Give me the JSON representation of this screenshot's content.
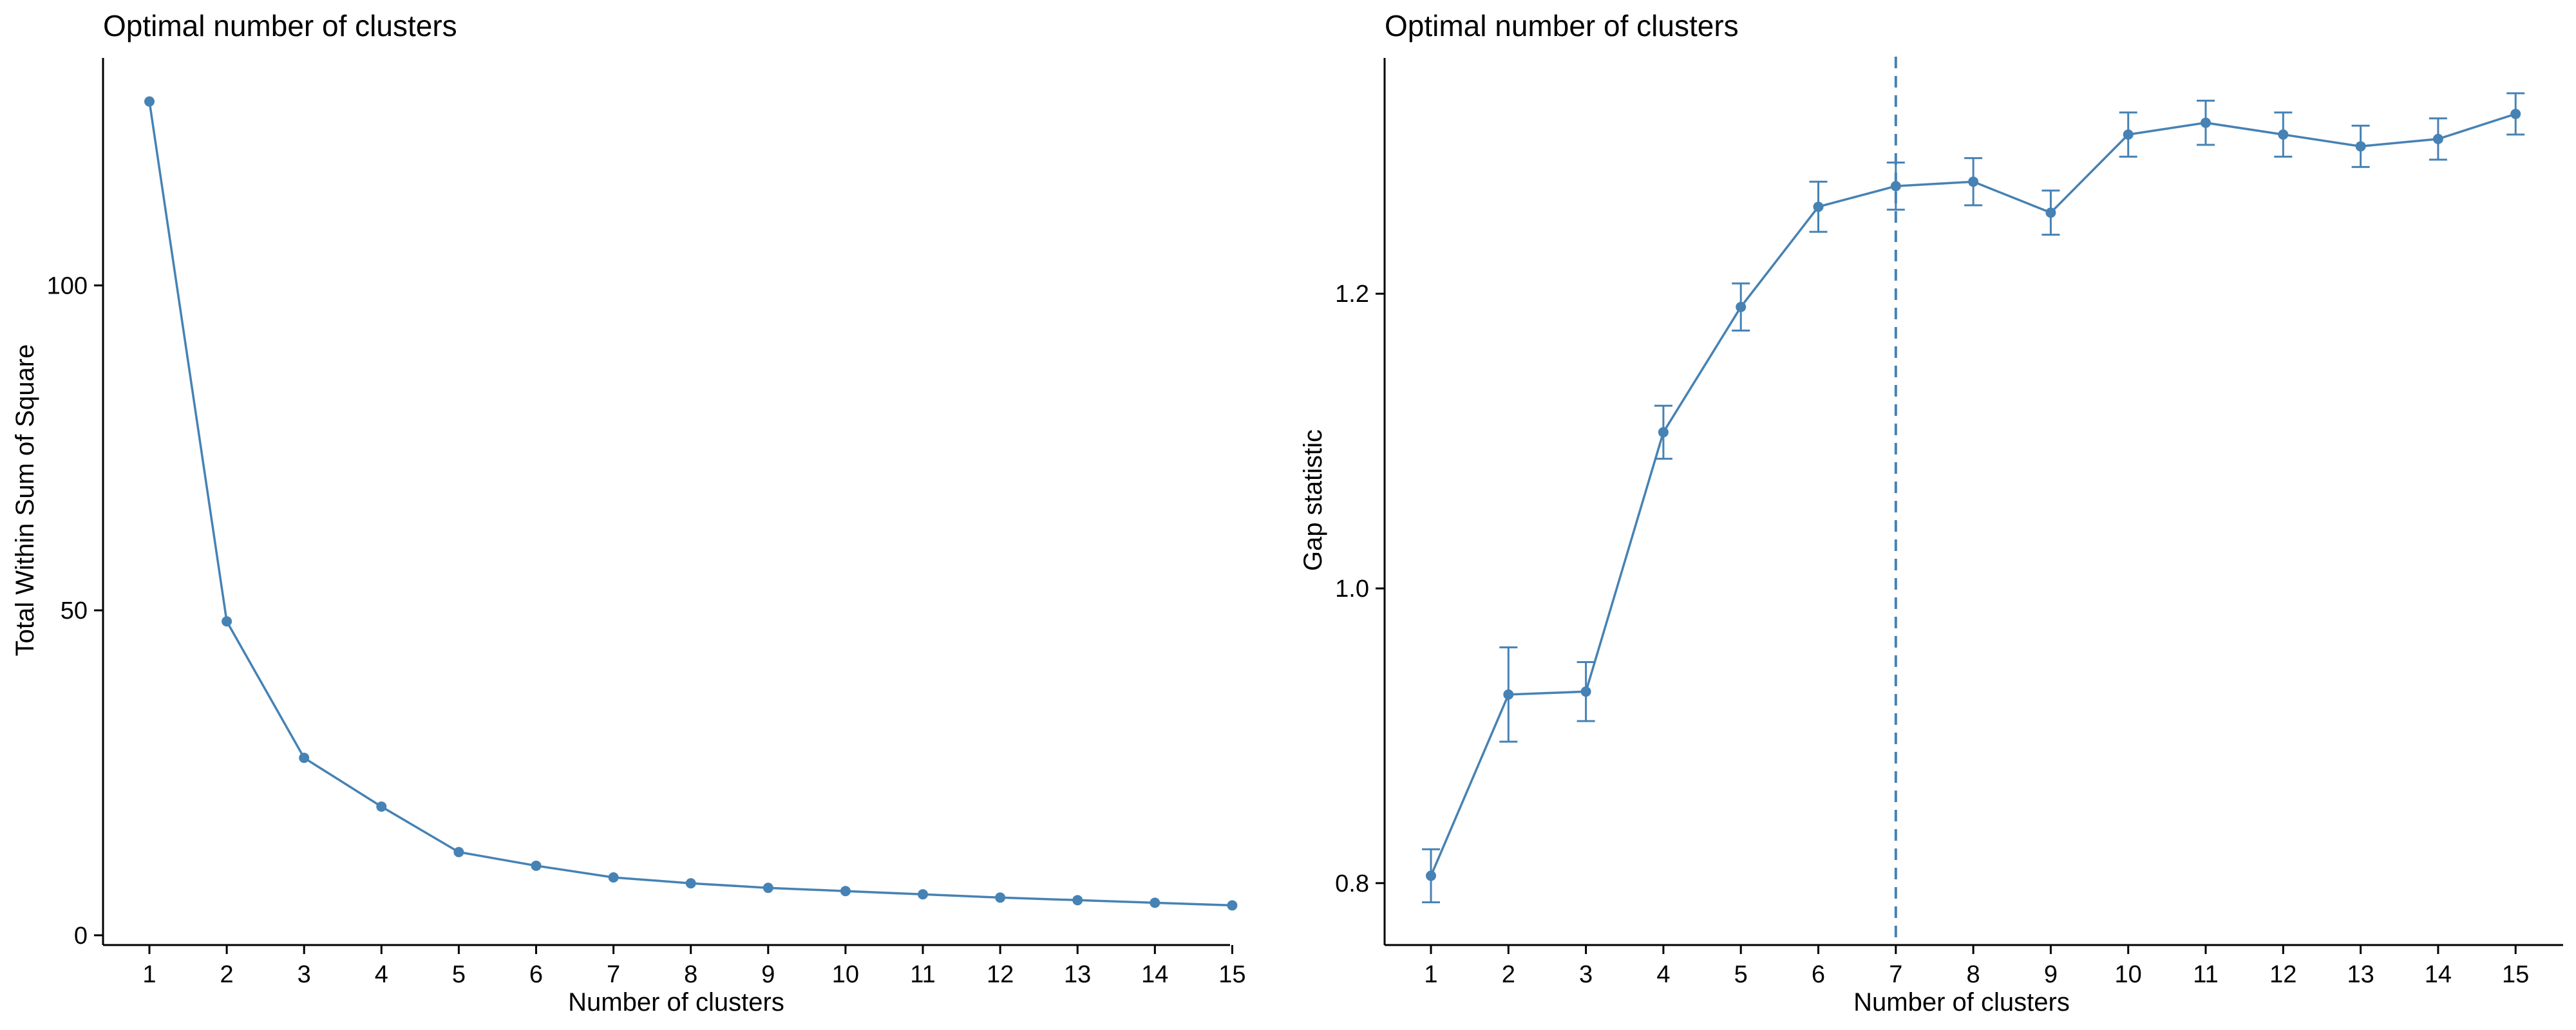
{
  "colors": {
    "series": "#4682B4",
    "axis": "#000000"
  },
  "chart_data": [
    {
      "type": "line",
      "title": "Optimal number of clusters",
      "xlabel": "Number of clusters",
      "ylabel": "Total Within Sum of Square",
      "x": [
        "1",
        "2",
        "3",
        "4",
        "5",
        "6",
        "7",
        "8",
        "9",
        "10",
        "11",
        "12",
        "13",
        "14",
        "15"
      ],
      "values": [
        128.3,
        48.3,
        27.3,
        19.8,
        12.8,
        10.7,
        8.9,
        8.0,
        7.3,
        6.8,
        6.3,
        5.8,
        5.4,
        5.0,
        4.6
      ],
      "ylim": [
        -1.5,
        135
      ],
      "yticks": [
        {
          "value": 0,
          "label": "0"
        },
        {
          "value": 50,
          "label": "50"
        },
        {
          "value": 100,
          "label": "100"
        }
      ],
      "grid": false,
      "legend": "none"
    },
    {
      "type": "line",
      "title": "Optimal number of clusters",
      "xlabel": "Number of clusters",
      "ylabel": "Gap statistic",
      "x": [
        "1",
        "2",
        "3",
        "4",
        "5",
        "6",
        "7",
        "8",
        "9",
        "10",
        "11",
        "12",
        "13",
        "14",
        "15"
      ],
      "values": [
        0.805,
        0.928,
        0.93,
        1.106,
        1.191,
        1.259,
        1.273,
        1.276,
        1.255,
        1.308,
        1.316,
        1.308,
        1.3,
        1.305,
        1.322
      ],
      "error": [
        0.018,
        0.032,
        0.02,
        0.018,
        0.016,
        0.017,
        0.016,
        0.016,
        0.015,
        0.015,
        0.015,
        0.015,
        0.014,
        0.014,
        0.014
      ],
      "ylim": [
        0.758,
        1.36
      ],
      "yticks": [
        {
          "value": 0.8,
          "label": "0.8"
        },
        {
          "value": 1.0,
          "label": "1.0"
        },
        {
          "value": 1.2,
          "label": "1.2"
        }
      ],
      "reference_line_x": 7,
      "grid": false,
      "legend": "none"
    }
  ]
}
